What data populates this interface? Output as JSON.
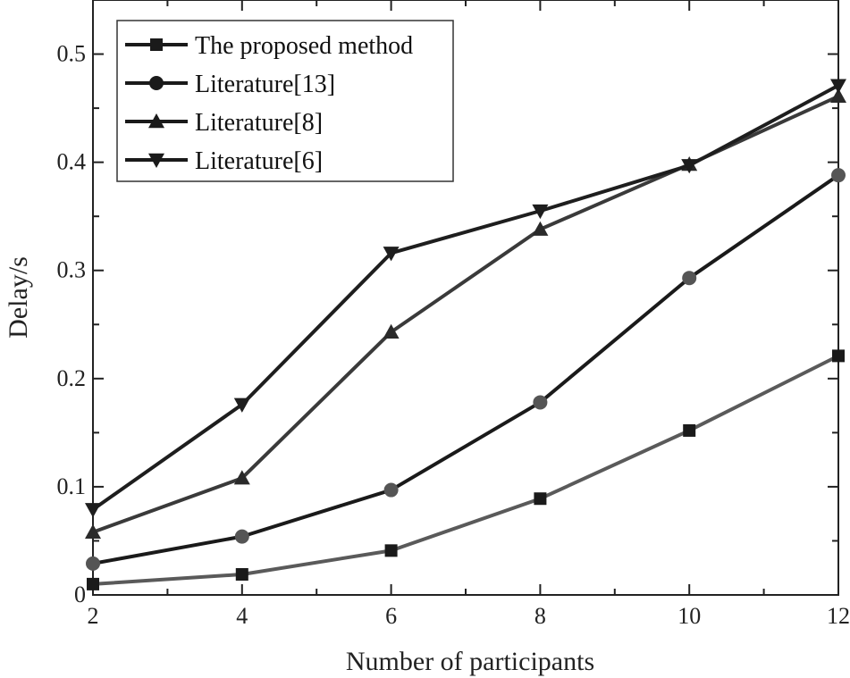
{
  "chart_data": {
    "type": "line",
    "xlabel": "Number of participants",
    "ylabel": "Delay/s",
    "xlim": [
      2,
      12
    ],
    "ylim": [
      0,
      0.55
    ],
    "x": [
      2,
      4,
      6,
      8,
      10,
      12
    ],
    "x_ticks": [
      "2",
      "4",
      "6",
      "8",
      "10",
      "12"
    ],
    "y_ticks": [
      "0",
      "0.1",
      "0.2",
      "0.3",
      "0.4",
      "0.5"
    ],
    "y_tick_values": [
      0,
      0.1,
      0.2,
      0.3,
      0.4,
      0.5
    ],
    "grid": false,
    "legend_position": "top-left",
    "series": [
      {
        "name": "The proposed method",
        "marker": "square",
        "color": "#5a5a5a",
        "marker_color": "#1a1a1a",
        "values": [
          0.01,
          0.019,
          0.041,
          0.089,
          0.152,
          0.221
        ]
      },
      {
        "name": "Literature[13]",
        "marker": "circle",
        "color": "#1a1a1a",
        "marker_color": "#555555",
        "values": [
          0.029,
          0.054,
          0.097,
          0.178,
          0.293,
          0.388
        ]
      },
      {
        "name": "Literature[8]",
        "marker": "triangle-up",
        "color": "#3a3a3a",
        "marker_color": "#2a2a2a",
        "values": [
          0.058,
          0.108,
          0.243,
          0.338,
          0.398,
          0.461
        ]
      },
      {
        "name": "Literature[6]",
        "marker": "triangle-down",
        "color": "#1e1e1e",
        "marker_color": "#1e1e1e",
        "values": [
          0.079,
          0.176,
          0.316,
          0.355,
          0.397,
          0.471
        ]
      }
    ]
  }
}
